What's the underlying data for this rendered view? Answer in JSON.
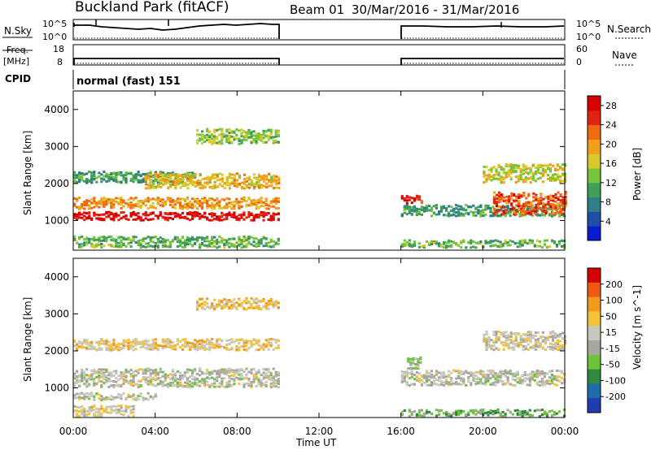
{
  "header": {
    "station": "Buckland Park (fitACF)",
    "beam": "Beam 01",
    "date_range": "30/Mar/2016 - 31/Mar/2016"
  },
  "panels": {
    "nsky": {
      "left_label": "N.Sky",
      "left_ticks": [
        "10^5",
        "10^0"
      ],
      "right_ticks": [
        "10^5",
        "10^0"
      ],
      "right_label": "N.Search"
    },
    "freq": {
      "left_label_top": "Freq.",
      "left_label_bottom": "[MHz]",
      "left_ticks": [
        "18",
        "8"
      ],
      "right_ticks": [
        "60",
        "0"
      ],
      "right_label": "Nave"
    },
    "cpid": {
      "left_label": "CPID",
      "text": "normal (fast) 151"
    }
  },
  "colors": {
    "power_scale": [
      "#0a1ad0",
      "#1e4fa8",
      "#2f7f86",
      "#3f9f5a",
      "#77c43a",
      "#d8c92a",
      "#f2a01a",
      "#f06a12",
      "#e02412",
      "#d80000"
    ],
    "velocity_scale": [
      "#1e3db0",
      "#1f6aa8",
      "#2e8a3e",
      "#6ec33a",
      "#a8a8a0",
      "#c8c8c0",
      "#f3c43a",
      "#f29a1a",
      "#ef5a10",
      "#d80000"
    ]
  },
  "chart_data": [
    {
      "type": "heatmap",
      "name": "power-map",
      "ylabel": "Slant Range [km]",
      "xlabel": "",
      "x_ticks": [
        "00:00",
        "04:00",
        "08:00",
        "12:00",
        "16:00",
        "20:00",
        "00:00"
      ],
      "y_ticks": [
        1000,
        2000,
        3000,
        4000
      ],
      "ylim": [
        200,
        4500
      ],
      "colorbar": {
        "label": "Power [dB]",
        "ticks": [
          4,
          8,
          12,
          16,
          20,
          24,
          28
        ],
        "range": [
          0,
          30
        ]
      },
      "data_gaps_ut_hours": [
        [
          10.0,
          16.0
        ]
      ],
      "bands": [
        {
          "t_start": 0.0,
          "t_end": 10.0,
          "range_center": 1150,
          "range_width": 220,
          "value": 28
        },
        {
          "t_start": 0.0,
          "t_end": 10.0,
          "range_center": 1500,
          "range_width": 300,
          "value": 20
        },
        {
          "t_start": 0.0,
          "t_end": 6.0,
          "range_center": 2200,
          "range_width": 300,
          "value": 10
        },
        {
          "t_start": 3.5,
          "t_end": 10.0,
          "range_center": 2100,
          "range_width": 400,
          "value": 18
        },
        {
          "t_start": 6.0,
          "t_end": 10.0,
          "range_center": 3300,
          "range_width": 400,
          "value": 14
        },
        {
          "t_start": 0.0,
          "t_end": 10.0,
          "range_center": 450,
          "range_width": 300,
          "value": 12
        },
        {
          "t_start": 16.0,
          "t_end": 24.0,
          "range_center": 1300,
          "range_width": 300,
          "value": 10
        },
        {
          "t_start": 16.0,
          "t_end": 17.0,
          "range_center": 1600,
          "range_width": 200,
          "value": 26
        },
        {
          "t_start": 20.5,
          "t_end": 24.0,
          "range_center": 1500,
          "range_width": 600,
          "value": 24
        },
        {
          "t_start": 20.0,
          "t_end": 24.0,
          "range_center": 2300,
          "range_width": 500,
          "value": 16
        },
        {
          "t_start": 16.0,
          "t_end": 24.0,
          "range_center": 400,
          "range_width": 200,
          "value": 12
        }
      ]
    },
    {
      "type": "heatmap",
      "name": "velocity-map",
      "ylabel": "Slant Range [km]",
      "xlabel": "Time UT",
      "x_ticks": [
        "00:00",
        "04:00",
        "08:00",
        "12:00",
        "16:00",
        "20:00",
        "00:00"
      ],
      "y_ticks": [
        1000,
        2000,
        3000,
        4000
      ],
      "ylim": [
        200,
        4500
      ],
      "colorbar": {
        "label": "Velocity [m s^-1]",
        "ticks": [
          200,
          100,
          50,
          15,
          -15,
          -50,
          -100,
          -200
        ],
        "range": [
          -250,
          250
        ]
      },
      "data_gaps_ut_hours": [
        [
          10.0,
          16.0
        ]
      ],
      "bands": [
        {
          "t_start": 0.0,
          "t_end": 10.0,
          "range_center": 1300,
          "range_width": 500,
          "value": 0
        },
        {
          "t_start": 0.0,
          "t_end": 4.0,
          "range_center": 800,
          "range_width": 200,
          "value": 0
        },
        {
          "t_start": 0.0,
          "t_end": 10.0,
          "range_center": 2200,
          "range_width": 300,
          "value": 60
        },
        {
          "t_start": 6.0,
          "t_end": 10.0,
          "range_center": 3300,
          "range_width": 300,
          "value": 80
        },
        {
          "t_start": 0.0,
          "t_end": 3.0,
          "range_center": 400,
          "range_width": 300,
          "value": 40
        },
        {
          "t_start": 16.0,
          "t_end": 24.0,
          "range_center": 1300,
          "range_width": 400,
          "value": 0
        },
        {
          "t_start": 16.0,
          "t_end": 24.0,
          "range_center": 350,
          "range_width": 200,
          "value": -80
        },
        {
          "t_start": 16.3,
          "t_end": 17.0,
          "range_center": 1700,
          "range_width": 300,
          "value": -40
        },
        {
          "t_start": 20.0,
          "t_end": 24.0,
          "range_center": 2300,
          "range_width": 500,
          "value": 30
        }
      ]
    }
  ]
}
